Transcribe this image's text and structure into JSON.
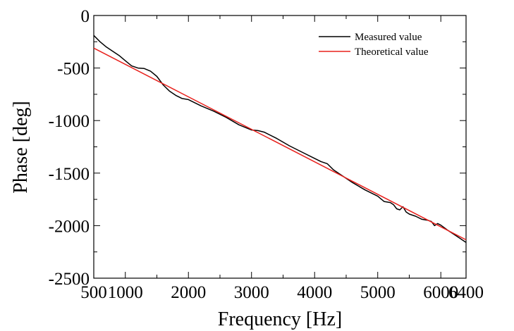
{
  "chart_data": {
    "type": "line",
    "title": "",
    "xlabel": "Frequency [Hz]",
    "ylabel": "Phase [deg]",
    "xlim": [
      500,
      6400
    ],
    "ylim": [
      -2500,
      0
    ],
    "xticks": [
      500,
      1000,
      2000,
      3000,
      4000,
      5000,
      6000,
      6400
    ],
    "xtick_labels": [
      "500",
      "1000",
      "2000",
      "3000",
      "4000",
      "5000",
      "6000",
      "6400"
    ],
    "yticks": [
      0,
      -500,
      -1000,
      -1500,
      -2000,
      -2500
    ],
    "ytick_labels": [
      "0",
      "-500",
      "-1000",
      "-1500",
      "-2000",
      "-2500"
    ],
    "grid": false,
    "legend_position": "top-right",
    "series": [
      {
        "name": "Measured value",
        "color": "#000000",
        "x": [
          500,
          600,
          700,
          800,
          900,
          1000,
          1100,
          1200,
          1300,
          1400,
          1500,
          1600,
          1700,
          1800,
          1900,
          2000,
          2200,
          2400,
          2600,
          2800,
          3000,
          3100,
          3200,
          3400,
          3600,
          3800,
          4000,
          4100,
          4200,
          4300,
          4400,
          4600,
          4800,
          5000,
          5100,
          5200,
          5250,
          5300,
          5350,
          5400,
          5450,
          5500,
          5600,
          5700,
          5800,
          5850,
          5900,
          5950,
          6000,
          6100,
          6200,
          6300,
          6400
        ],
        "y": [
          -190,
          -250,
          -300,
          -340,
          -380,
          -430,
          -480,
          -500,
          -505,
          -530,
          -580,
          -660,
          -720,
          -760,
          -790,
          -800,
          -860,
          -910,
          -970,
          -1040,
          -1090,
          -1095,
          -1110,
          -1170,
          -1240,
          -1300,
          -1360,
          -1390,
          -1410,
          -1470,
          -1510,
          -1590,
          -1660,
          -1720,
          -1770,
          -1780,
          -1800,
          -1840,
          -1850,
          -1820,
          -1870,
          -1890,
          -1910,
          -1940,
          -1950,
          -1960,
          -2000,
          -1980,
          -1995,
          -2040,
          -2080,
          -2120,
          -2160
        ]
      },
      {
        "name": "Theoretical value",
        "color": "#e8201c",
        "x": [
          500,
          6400
        ],
        "y": [
          -310,
          -2135
        ]
      }
    ]
  }
}
